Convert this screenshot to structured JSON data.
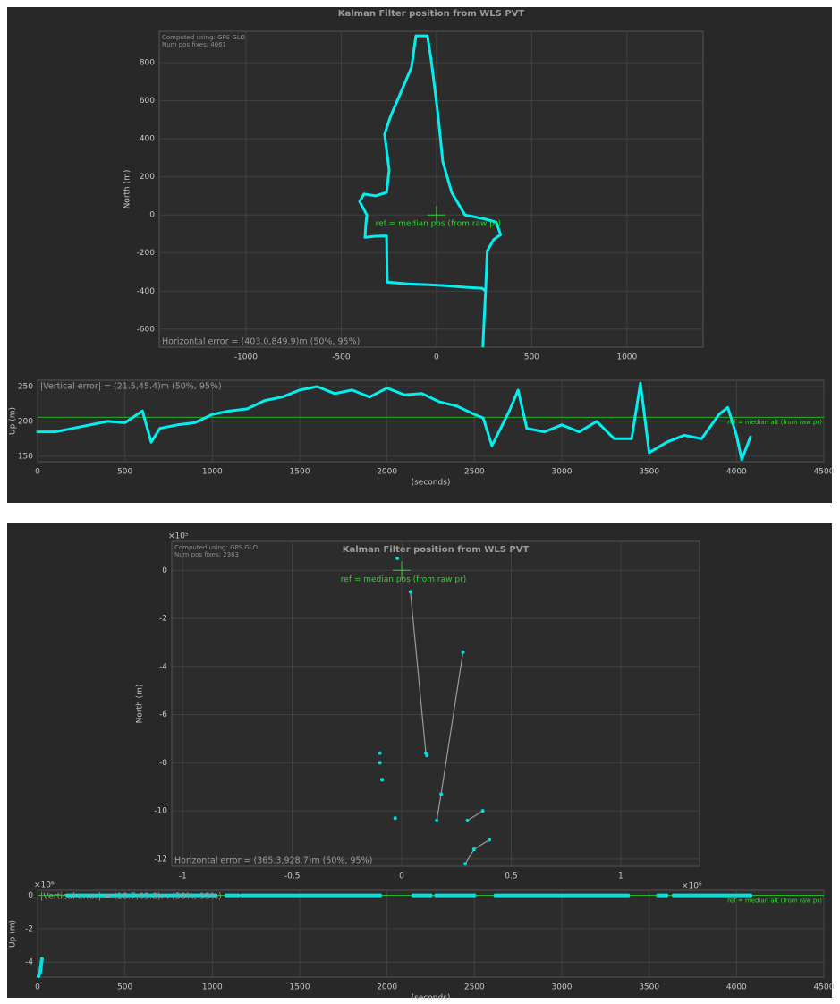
{
  "chart_data": [
    {
      "type": "line",
      "title": "Kalman Filter position from WLS PVT",
      "notes": [
        "Computed using: GPS GLO",
        "Num pos fixes: 4061"
      ],
      "ylabel": "North (m)",
      "ref_label": "ref = median pos (from raw pr)",
      "ref_x": 0,
      "ref_y": 0,
      "ref_color": "#22dd22",
      "error_label": "Horizontal error  = (403.0,849.9)m (50%, 95%)",
      "color": "#00f0f0",
      "grid": true,
      "xlim": [
        -1455,
        1400
      ],
      "ylim": [
        -695,
        965
      ],
      "xticks": [
        -1000,
        -500,
        0,
        500,
        1000
      ],
      "yticks": [
        -600,
        -400,
        -200,
        0,
        200,
        400,
        600,
        800
      ],
      "x": [
        244,
        250,
        258,
        240,
        150,
        50,
        -37,
        -150,
        -258,
        -260,
        -262,
        -320,
        -375,
        -370,
        -365,
        -403,
        -380,
        -320,
        -262,
        -248,
        -272,
        -240,
        -201,
        -131,
        -108,
        -47,
        -30,
        -14,
        9,
        33,
        80,
        150,
        250,
        314,
        337,
        300,
        267,
        262,
        258
      ],
      "values": [
        -690,
        -560,
        -400,
        -385,
        -380,
        -372,
        -367,
        -362,
        -353,
        -250,
        -110,
        -112,
        -118,
        -40,
        0,
        70,
        110,
        100,
        118,
        235,
        424,
        520,
        612,
        776,
        941,
        941,
        830,
        706,
        518,
        282,
        118,
        0,
        -20,
        -38,
        -104,
        -130,
        -188,
        -300,
        -400
      ]
    },
    {
      "type": "line",
      "ylabel": "Up (m)",
      "xlabel": "(seconds)",
      "error_label": "|Vertical error| = (21.5,45.4)m (50%, 95%)",
      "ref_label": "ref = median alt (from raw pr)",
      "ref_value": 206,
      "ref_color": "#22dd22",
      "color": "#00f0f0",
      "grid": true,
      "xlim": [
        0,
        4500
      ],
      "ylim": [
        142,
        259
      ],
      "xticks": [
        0,
        500,
        1000,
        1500,
        2000,
        2500,
        3000,
        3500,
        4000,
        4500
      ],
      "yticks": [
        150,
        200,
        250
      ],
      "x": [
        0,
        100,
        200,
        300,
        400,
        500,
        600,
        650,
        700,
        800,
        900,
        1000,
        1100,
        1200,
        1300,
        1400,
        1500,
        1600,
        1700,
        1800,
        1900,
        2000,
        2100,
        2200,
        2300,
        2400,
        2500,
        2550,
        2600,
        2700,
        2750,
        2800,
        2900,
        3000,
        3100,
        3200,
        3300,
        3400,
        3450,
        3500,
        3600,
        3700,
        3800,
        3900,
        3950,
        4000,
        4030,
        4080
      ],
      "values": [
        185,
        185,
        190,
        195,
        200,
        198,
        215,
        170,
        190,
        195,
        198,
        210,
        215,
        218,
        230,
        235,
        245,
        250,
        240,
        245,
        235,
        248,
        238,
        240,
        228,
        222,
        210,
        205,
        165,
        215,
        245,
        190,
        185,
        195,
        185,
        200,
        175,
        175,
        255,
        155,
        170,
        180,
        175,
        210,
        220,
        180,
        145,
        178
      ]
    },
    {
      "type": "scatter",
      "title": "Kalman Filter position from WLS PVT",
      "notes": [
        "Computed using: GPS GLO",
        "Num pos fixes: 2363"
      ],
      "ylabel": "North (m)",
      "y_exponent": "×10⁵",
      "x_exponent": "×10⁶",
      "ref_label": "ref = median pos (from raw pr)",
      "ref_x": 0,
      "ref_y": 0,
      "ref_color": "#22dd22",
      "error_label": "Horizontal error  = (365.3,928.7)m (50%, 95%)",
      "color": "#00e0e0",
      "line_color": "#9a9a9a",
      "grid": true,
      "xlim": [
        -1.05,
        1.36
      ],
      "ylim": [
        -12.3,
        1.2
      ],
      "xticks": [
        -1,
        -0.5,
        0,
        0.5,
        1
      ],
      "yticks": [
        -12,
        -10,
        -8,
        -6,
        -4,
        -2,
        0
      ],
      "x": [
        -0.02,
        null,
        0.04,
        0.11,
        null,
        0.115,
        null,
        0.28,
        0.18,
        0.16,
        null,
        -0.1,
        null,
        -0.1,
        null,
        -0.09,
        null,
        -0.03,
        null,
        0.3,
        0.37,
        null,
        0.29,
        0.33,
        0.4
      ],
      "values": [
        0.5,
        null,
        -0.9,
        -7.6,
        null,
        -7.7,
        null,
        -3.4,
        -9.3,
        -10.4,
        null,
        -7.6,
        null,
        -8.0,
        null,
        -8.7,
        null,
        -10.3,
        null,
        -10.4,
        -10.0,
        null,
        -12.2,
        -11.6,
        -11.2
      ]
    },
    {
      "type": "line",
      "ylabel": "Up (m)",
      "xlabel": "(seconds)",
      "y_exponent": "×10⁶",
      "error_label": "|Vertical error| = (18.7,63.8)m (50%, 95%)",
      "ref_label": "ref = median alt (from raw pr)",
      "ref_value": 0,
      "ref_color": "#22dd22",
      "color": "#00e0e0",
      "grid": true,
      "xlim": [
        0,
        4500
      ],
      "ylim": [
        -4.9,
        0.3
      ],
      "xticks": [
        0,
        500,
        1000,
        1500,
        2000,
        2500,
        3000,
        3500,
        4000,
        4500
      ],
      "yticks": [
        -4,
        -2,
        0
      ],
      "x": [
        5,
        15,
        25,
        100,
        170,
        1020,
        1050,
        1080,
        1150,
        1160,
        1170,
        1960,
        2050,
        2150,
        2250,
        2265,
        2280,
        2500,
        2560,
        2620,
        3380,
        3460,
        3550,
        3600,
        3620,
        3640,
        4080
      ],
      "values": [
        -4.85,
        -4.6,
        -3.8,
        null,
        0,
        0,
        null,
        0,
        0,
        null,
        0,
        0,
        null,
        0,
        0,
        null,
        0,
        0,
        null,
        0,
        0,
        null,
        0,
        0,
        null,
        0,
        0
      ]
    }
  ]
}
